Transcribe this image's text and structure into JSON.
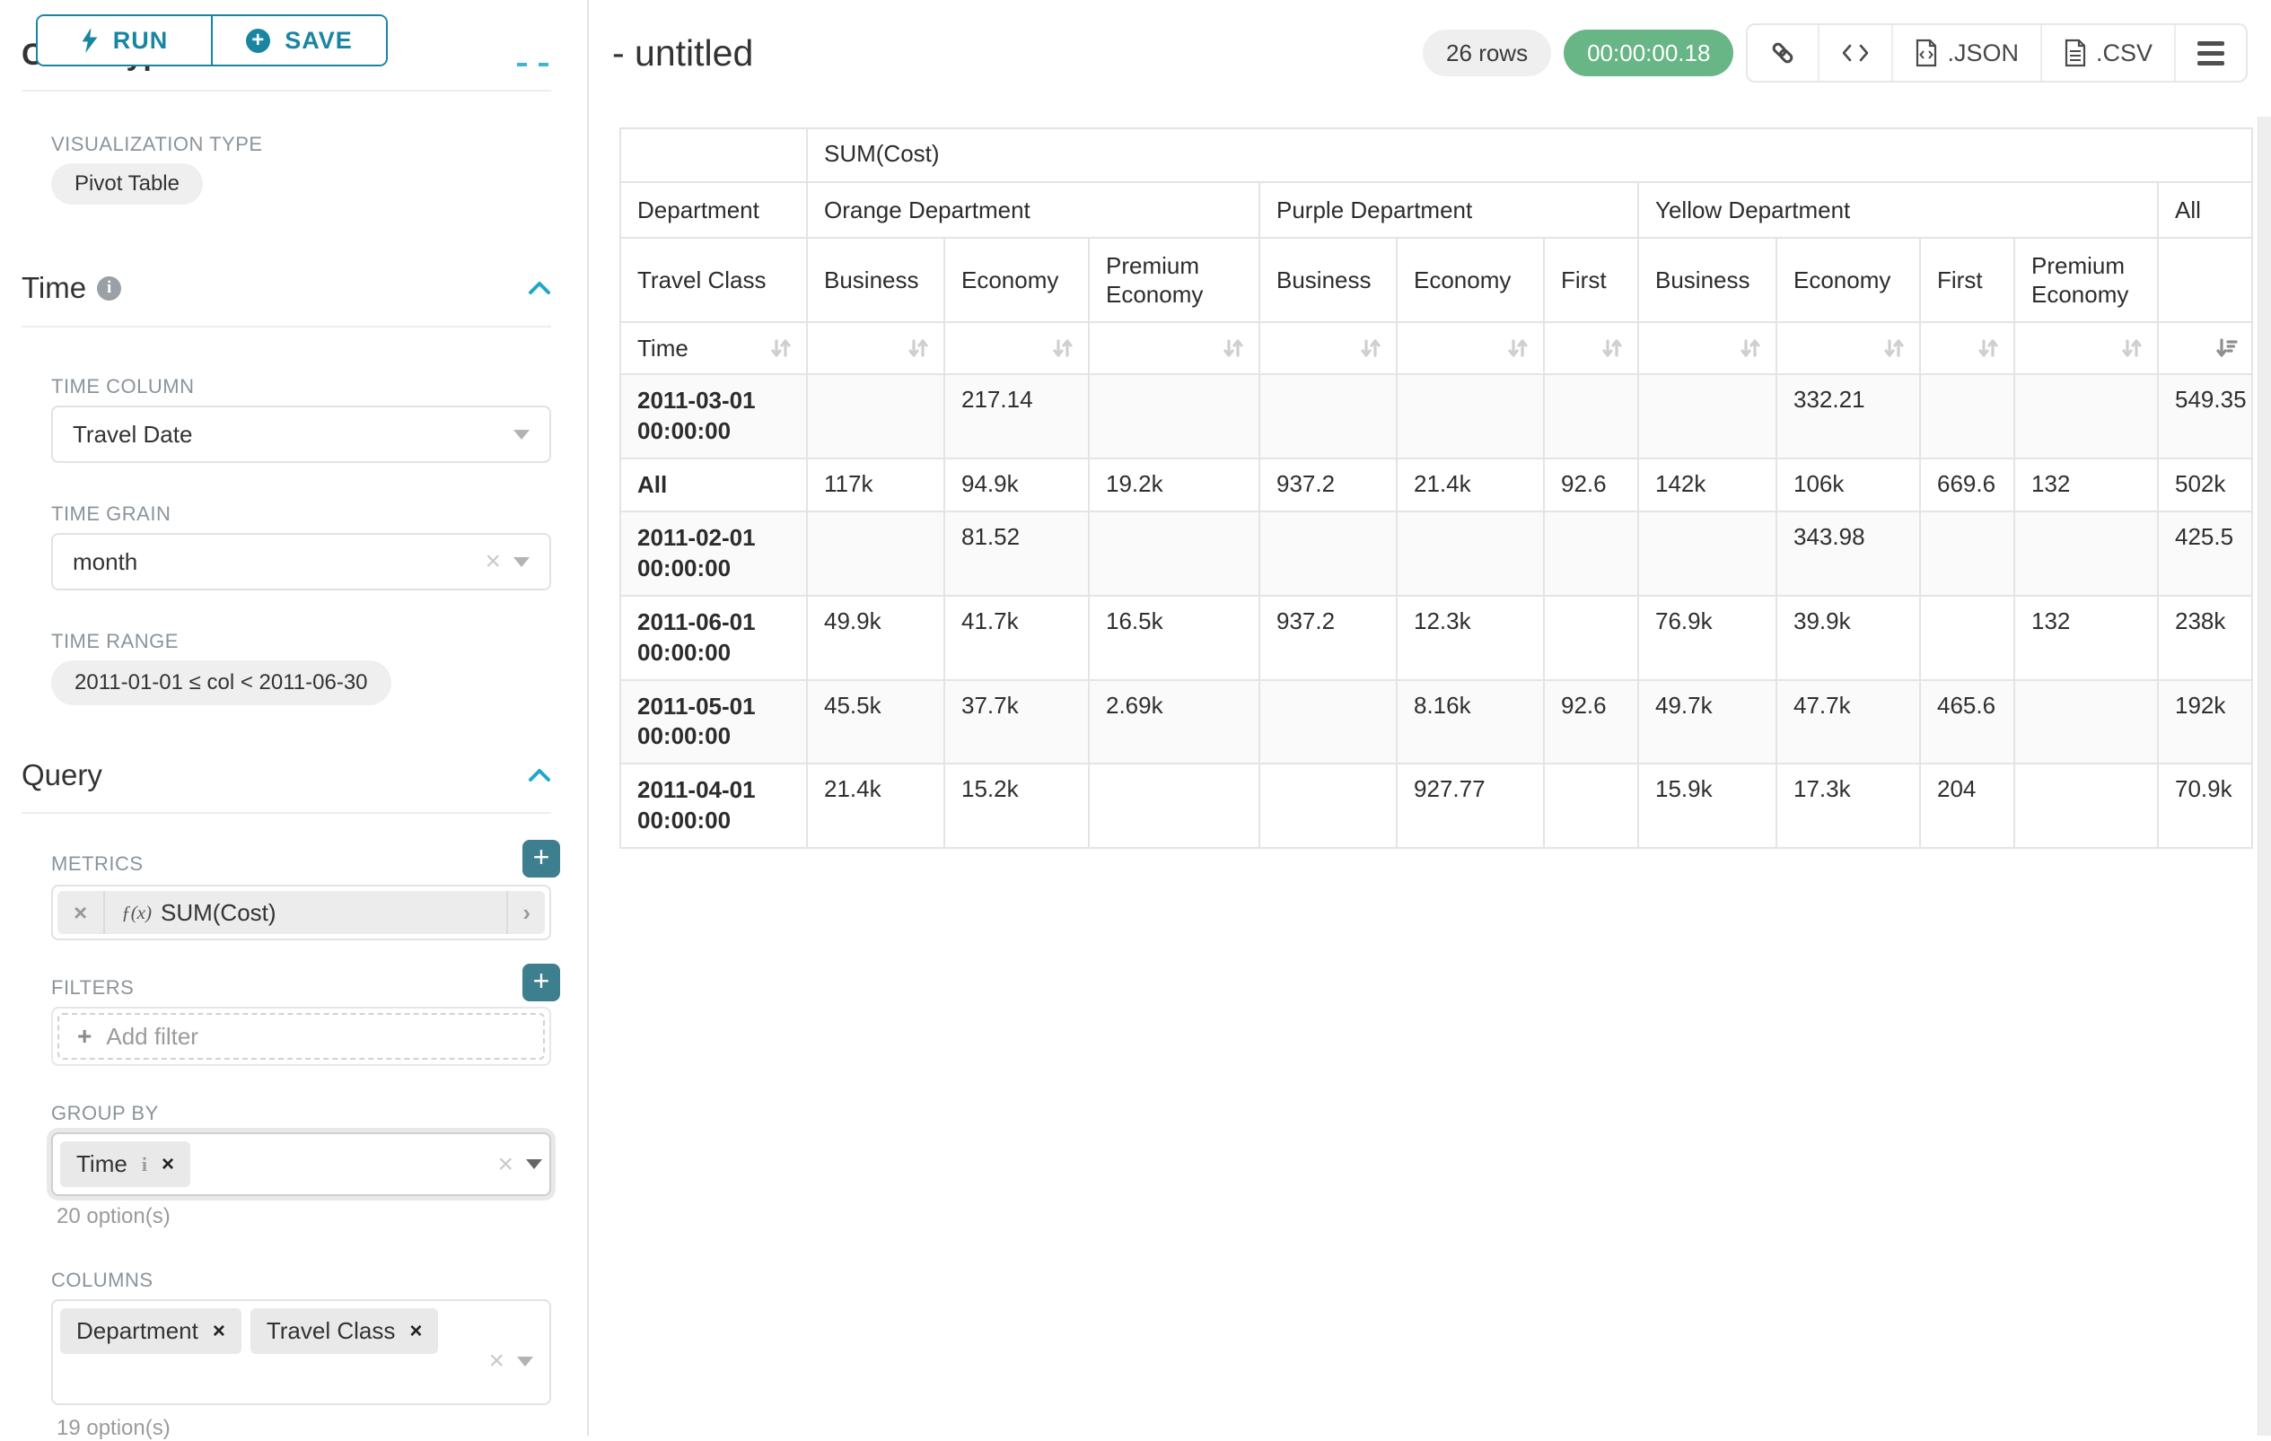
{
  "sidebar": {
    "run_label": "RUN",
    "save_label": "SAVE",
    "chart_type_heading": "Chart Type",
    "viz": {
      "label": "VISUALIZATION TYPE",
      "value": "Pivot Table"
    },
    "time": {
      "heading": "Time",
      "time_column_label": "TIME COLUMN",
      "time_column_value": "Travel Date",
      "time_grain_label": "TIME GRAIN",
      "time_grain_value": "month",
      "time_range_label": "TIME RANGE",
      "time_range_value": "2011-01-01 ≤ col < 2011-06-30"
    },
    "query": {
      "heading": "Query",
      "metrics_label": "METRICS",
      "metric_prefix": "ƒ(x)",
      "metric_value": "SUM(Cost)",
      "filters_label": "FILTERS",
      "add_filter_label": "Add filter",
      "group_by_label": "GROUP BY",
      "group_by_chips": [
        {
          "label": "Time"
        }
      ],
      "group_by_hint": "20 option(s)",
      "columns_label": "COLUMNS",
      "columns_chips": [
        "Department",
        "Travel Class"
      ],
      "columns_hint": "19 option(s)"
    }
  },
  "header": {
    "title": "- untitled",
    "rows_badge": "26 rows",
    "timer_badge": "00:00:00.18",
    "json_label": ".JSON",
    "csv_label": ".CSV"
  },
  "icons": {
    "run": "bolt-icon",
    "save": "plus-circle-icon",
    "sections": "chevron-up-icon",
    "share": "link-icon",
    "embed": "code-icon",
    "export_json": "file-code-icon",
    "export_csv": "file-text-icon",
    "menu": "hamburger-icon",
    "sort": "sort-arrows-icon",
    "sort_active": "sort-desc-icon"
  },
  "colors": {
    "accent_teal": "#1985a0",
    "accent_blue": "#20a7c9",
    "plus_teal": "#3d7e8f",
    "success_green": "#68b586",
    "badge_gray": "#efefef"
  },
  "table": {
    "metric_header": "SUM(Cost)",
    "row_dim_label": "Department",
    "row_dim2_label": "Travel Class",
    "time_label": "Time",
    "col_groups": [
      {
        "label": "Orange Department",
        "cols": [
          "Business",
          "Economy",
          "Premium Economy"
        ]
      },
      {
        "label": "Purple Department",
        "cols": [
          "Business",
          "Economy",
          "First"
        ]
      },
      {
        "label": "Yellow Department",
        "cols": [
          "Business",
          "Economy",
          "First",
          "Premium Economy"
        ]
      },
      {
        "label": "All",
        "cols": [
          ""
        ]
      }
    ],
    "rows": [
      {
        "label": "2011-03-01 00:00:00",
        "values": [
          "",
          "217.14",
          "",
          "",
          "",
          "",
          "",
          "332.21",
          "",
          "",
          "549.35"
        ]
      },
      {
        "label": "All",
        "values": [
          "117k",
          "94.9k",
          "19.2k",
          "937.2",
          "21.4k",
          "92.6",
          "142k",
          "106k",
          "669.6",
          "132",
          "502k"
        ]
      },
      {
        "label": "2011-02-01 00:00:00",
        "values": [
          "",
          "81.52",
          "",
          "",
          "",
          "",
          "",
          "343.98",
          "",
          "",
          "425.5"
        ]
      },
      {
        "label": "2011-06-01 00:00:00",
        "values": [
          "49.9k",
          "41.7k",
          "16.5k",
          "937.2",
          "12.3k",
          "",
          "76.9k",
          "39.9k",
          "",
          "132",
          "238k"
        ]
      },
      {
        "label": "2011-05-01 00:00:00",
        "values": [
          "45.5k",
          "37.7k",
          "2.69k",
          "",
          "8.16k",
          "92.6",
          "49.7k",
          "47.7k",
          "465.6",
          "",
          "192k"
        ]
      },
      {
        "label": "2011-04-01 00:00:00",
        "values": [
          "21.4k",
          "15.2k",
          "",
          "",
          "927.77",
          "",
          "15.9k",
          "17.3k",
          "204",
          "",
          "70.9k"
        ]
      }
    ]
  }
}
